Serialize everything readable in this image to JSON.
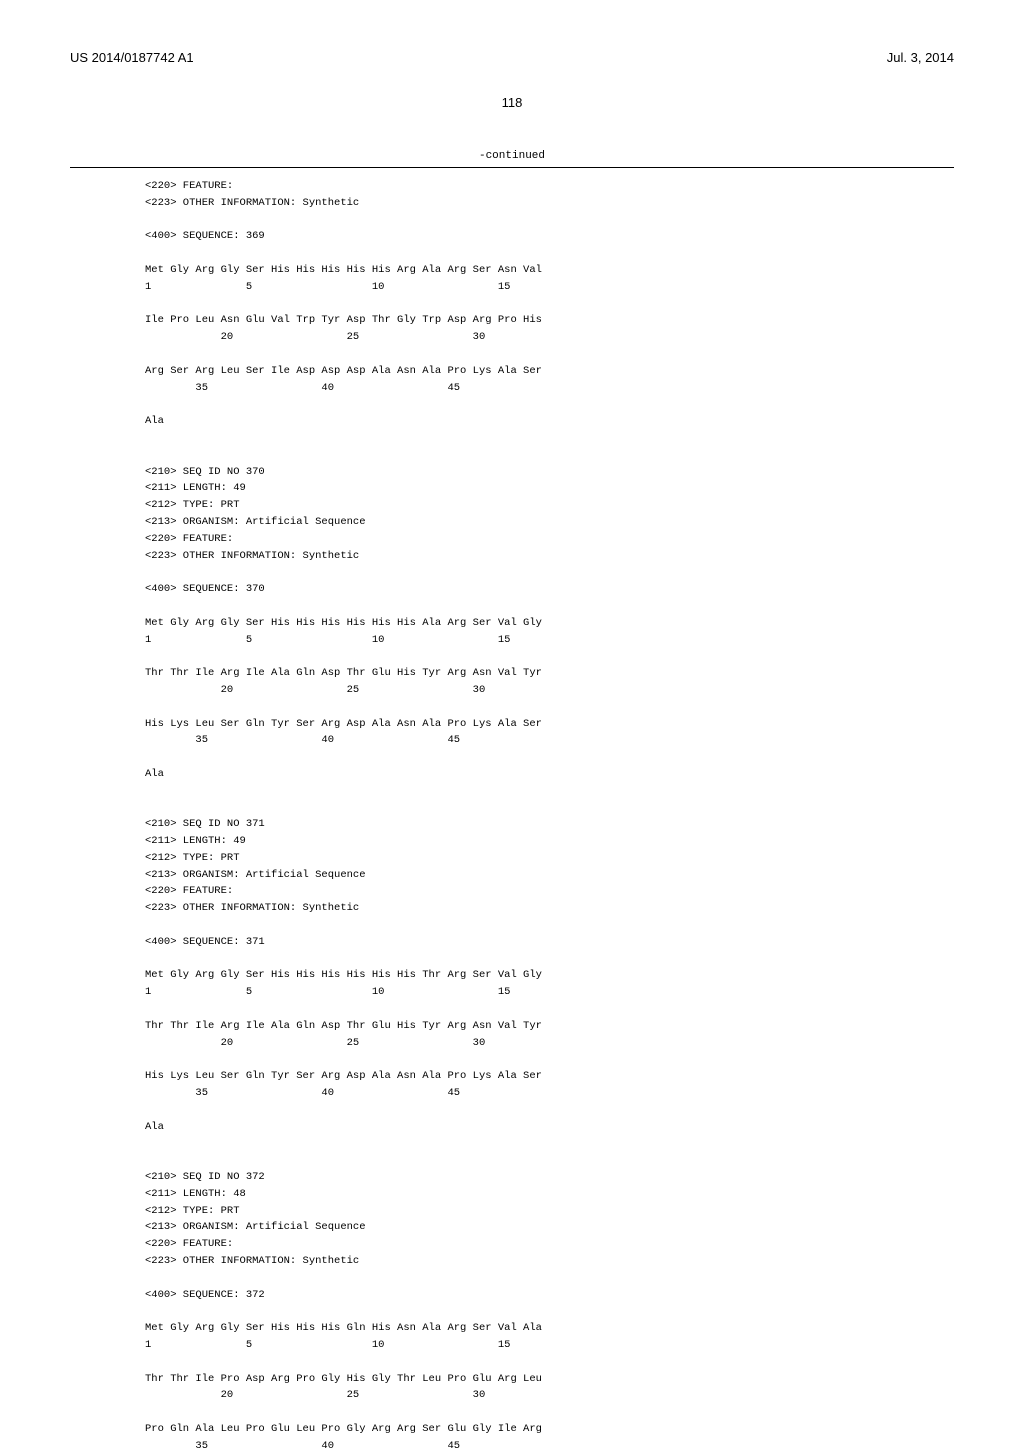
{
  "header": {
    "pub_number": "US 2014/0187742 A1",
    "date": "Jul. 3, 2014"
  },
  "page_num": "118",
  "continued_label": "-continued",
  "sequence_text": "<220> FEATURE:\n<223> OTHER INFORMATION: Synthetic\n\n<400> SEQUENCE: 369\n\nMet Gly Arg Gly Ser His His His His His Arg Ala Arg Ser Asn Val\n1               5                   10                  15\n\nIle Pro Leu Asn Glu Val Trp Tyr Asp Thr Gly Trp Asp Arg Pro His\n            20                  25                  30\n\nArg Ser Arg Leu Ser Ile Asp Asp Asp Ala Asn Ala Pro Lys Ala Ser\n        35                  40                  45\n\nAla\n\n\n<210> SEQ ID NO 370\n<211> LENGTH: 49\n<212> TYPE: PRT\n<213> ORGANISM: Artificial Sequence\n<220> FEATURE:\n<223> OTHER INFORMATION: Synthetic\n\n<400> SEQUENCE: 370\n\nMet Gly Arg Gly Ser His His His His His His Ala Arg Ser Val Gly\n1               5                   10                  15\n\nThr Thr Ile Arg Ile Ala Gln Asp Thr Glu His Tyr Arg Asn Val Tyr\n            20                  25                  30\n\nHis Lys Leu Ser Gln Tyr Ser Arg Asp Ala Asn Ala Pro Lys Ala Ser\n        35                  40                  45\n\nAla\n\n\n<210> SEQ ID NO 371\n<211> LENGTH: 49\n<212> TYPE: PRT\n<213> ORGANISM: Artificial Sequence\n<220> FEATURE:\n<223> OTHER INFORMATION: Synthetic\n\n<400> SEQUENCE: 371\n\nMet Gly Arg Gly Ser His His His His His His Thr Arg Ser Val Gly\n1               5                   10                  15\n\nThr Thr Ile Arg Ile Ala Gln Asp Thr Glu His Tyr Arg Asn Val Tyr\n            20                  25                  30\n\nHis Lys Leu Ser Gln Tyr Ser Arg Asp Ala Asn Ala Pro Lys Ala Ser\n        35                  40                  45\n\nAla\n\n\n<210> SEQ ID NO 372\n<211> LENGTH: 48\n<212> TYPE: PRT\n<213> ORGANISM: Artificial Sequence\n<220> FEATURE:\n<223> OTHER INFORMATION: Synthetic\n\n<400> SEQUENCE: 372\n\nMet Gly Arg Gly Ser His His His Gln His Asn Ala Arg Ser Val Ala\n1               5                   10                  15\n\nThr Thr Ile Pro Asp Arg Pro Gly His Gly Thr Leu Pro Glu Arg Leu\n            20                  25                  30\n\nPro Gln Ala Leu Pro Glu Leu Pro Gly Arg Arg Ser Glu Gly Ile Arg\n        35                  40                  45"
}
